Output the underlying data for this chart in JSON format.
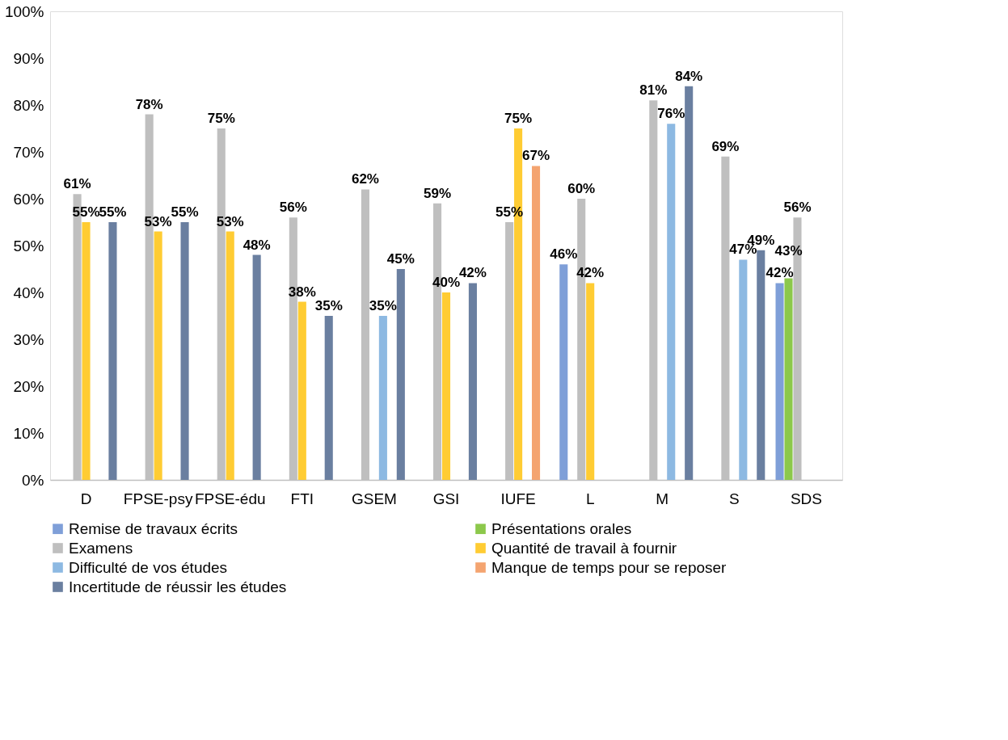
{
  "chart_data": {
    "type": "bar",
    "categories": [
      "D",
      "FPSE-psy",
      "FPSE-édu",
      "FTI",
      "GSEM",
      "GSI",
      "IUFE",
      "L",
      "M",
      "S",
      "SDS"
    ],
    "series": [
      {
        "name": "Remise de travaux écrits",
        "color": "#7f9fd8",
        "values": [
          null,
          null,
          null,
          null,
          null,
          null,
          null,
          46,
          null,
          null,
          42
        ],
        "value_labels": [
          null,
          null,
          null,
          null,
          null,
          null,
          null,
          "46%",
          null,
          null,
          "42%"
        ]
      },
      {
        "name": "Présentations orales",
        "color": "#8cc84b",
        "values": [
          null,
          null,
          null,
          null,
          null,
          null,
          null,
          null,
          null,
          null,
          43
        ],
        "value_labels": [
          null,
          null,
          null,
          null,
          null,
          null,
          null,
          null,
          null,
          null,
          "43%"
        ]
      },
      {
        "name": "Examens",
        "color": "#bfbfbf",
        "values": [
          61,
          78,
          75,
          56,
          62,
          59,
          55,
          60,
          81,
          69,
          56
        ],
        "value_labels": [
          "61%",
          "78%",
          "75%",
          "56%",
          "62%",
          "59%",
          "55%",
          "60%",
          "81%",
          "69%",
          "56%"
        ]
      },
      {
        "name": "Quantité de travail à fournir",
        "color": "#ffcc33",
        "values": [
          55,
          53,
          53,
          38,
          null,
          40,
          75,
          42,
          null,
          null,
          null
        ],
        "value_labels": [
          "55%",
          "53%",
          "53%",
          "38%",
          null,
          "40%",
          "75%",
          "42%",
          null,
          null,
          null
        ]
      },
      {
        "name": "Difficulté de vos études",
        "color": "#8db9e2",
        "values": [
          null,
          null,
          null,
          null,
          35,
          null,
          null,
          null,
          76,
          47,
          null
        ],
        "value_labels": [
          null,
          null,
          null,
          null,
          "35%",
          null,
          null,
          null,
          "76%",
          "47%",
          null
        ]
      },
      {
        "name": "Manque de temps pour se reposer",
        "color": "#f4a470",
        "values": [
          null,
          null,
          null,
          null,
          null,
          null,
          67,
          null,
          null,
          null,
          null
        ],
        "value_labels": [
          null,
          null,
          null,
          null,
          null,
          null,
          "67%",
          null,
          null,
          null,
          null
        ]
      },
      {
        "name": "Incertitude de réussir les études",
        "color": "#6a7fa0",
        "values": [
          55,
          55,
          48,
          35,
          45,
          42,
          null,
          null,
          84,
          49,
          null
        ],
        "value_labels": [
          "55%",
          "55%",
          "48%",
          "35%",
          "45%",
          "42%",
          null,
          null,
          "84%",
          "49%",
          null
        ]
      }
    ],
    "ylim": [
      0,
      100
    ],
    "yticks": [
      {
        "value": 0,
        "label": "0%"
      },
      {
        "value": 10,
        "label": "10%"
      },
      {
        "value": 20,
        "label": "20%"
      },
      {
        "value": 30,
        "label": "30%"
      },
      {
        "value": 40,
        "label": "40%"
      },
      {
        "value": 50,
        "label": "50%"
      },
      {
        "value": 60,
        "label": "60%"
      },
      {
        "value": 70,
        "label": "70%"
      },
      {
        "value": 80,
        "label": "80%"
      },
      {
        "value": 90,
        "label": "90%"
      },
      {
        "value": 100,
        "label": "100%"
      }
    ],
    "grid": false,
    "legend": "bottom"
  }
}
